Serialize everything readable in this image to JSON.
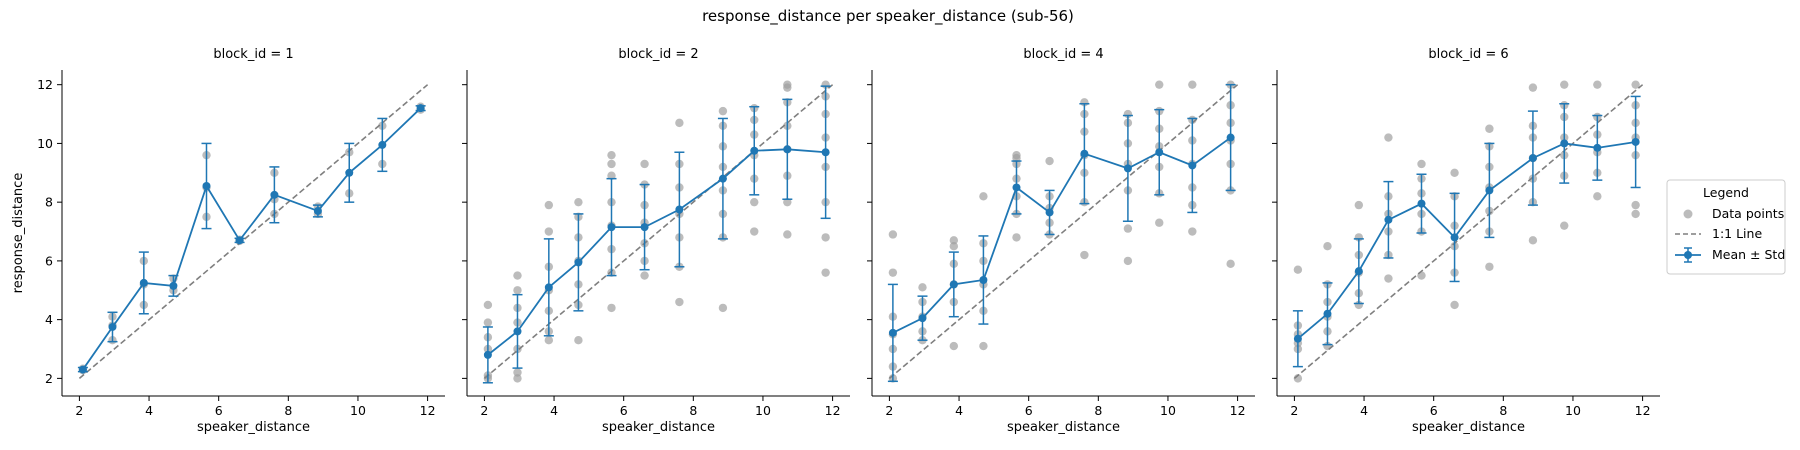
{
  "figure_title": "response_distance per speaker_distance (sub-56)",
  "legend": {
    "title": "Legend",
    "items": [
      "Data points",
      "1:1 Line",
      "Mean ± Std"
    ]
  },
  "colors": {
    "mean": "#1f77b4",
    "points": "#a0a0a0",
    "identity": "#7f7f7f"
  },
  "chart_data": [
    {
      "type": "line",
      "title": "block_id = 1",
      "xlabel": "speaker_distance",
      "ylabel": "response_distance",
      "xlim": [
        1.5,
        12.5
      ],
      "ylim": [
        1.4,
        12.5
      ],
      "xticks": [
        2,
        4,
        6,
        8,
        10,
        12
      ],
      "yticks": [
        2,
        4,
        6,
        8,
        10,
        12
      ],
      "x": [
        2.1,
        2.95,
        3.85,
        4.7,
        5.65,
        6.6,
        7.6,
        8.85,
        9.75,
        10.7,
        11.8
      ],
      "mean": [
        2.3,
        3.75,
        5.25,
        5.15,
        8.55,
        6.7,
        8.25,
        7.7,
        9.0,
        9.95,
        11.2
      ],
      "std": [
        0.07,
        0.5,
        1.05,
        0.35,
        1.45,
        0.07,
        0.95,
        0.2,
        1.0,
        0.9,
        0.08
      ],
      "points": [
        [
          2.1,
          2.28
        ],
        [
          2.1,
          2.33
        ],
        [
          2.95,
          3.3
        ],
        [
          2.95,
          4.1
        ],
        [
          2.95,
          3.8
        ],
        [
          3.85,
          4.5
        ],
        [
          3.85,
          6.0
        ],
        [
          3.85,
          5.2
        ],
        [
          4.7,
          5.0
        ],
        [
          4.7,
          5.4
        ],
        [
          5.65,
          7.5
        ],
        [
          5.65,
          9.6
        ],
        [
          5.65,
          8.5
        ],
        [
          6.6,
          6.68
        ],
        [
          6.6,
          6.72
        ],
        [
          7.6,
          7.6
        ],
        [
          7.6,
          9.0
        ],
        [
          7.6,
          8.1
        ],
        [
          8.85,
          7.6
        ],
        [
          8.85,
          7.85
        ],
        [
          9.75,
          8.3
        ],
        [
          9.75,
          9.7
        ],
        [
          10.7,
          9.3
        ],
        [
          10.7,
          10.6
        ],
        [
          11.8,
          11.15
        ],
        [
          11.8,
          11.25
        ]
      ]
    },
    {
      "type": "line",
      "title": "block_id = 2",
      "xlabel": "speaker_distance",
      "ylabel": "",
      "xlim": [
        1.5,
        12.5
      ],
      "ylim": [
        1.4,
        12.5
      ],
      "xticks": [
        2,
        4,
        6,
        8,
        10,
        12
      ],
      "yticks": [
        2,
        4,
        6,
        8,
        10,
        12
      ],
      "x": [
        2.1,
        2.95,
        3.85,
        4.7,
        5.65,
        6.6,
        7.6,
        8.85,
        9.75,
        10.7,
        11.8
      ],
      "mean": [
        2.8,
        3.6,
        5.1,
        5.95,
        7.15,
        7.15,
        7.75,
        8.8,
        9.75,
        9.8,
        9.7
      ],
      "std": [
        0.95,
        1.25,
        1.65,
        1.65,
        1.65,
        1.45,
        1.95,
        2.05,
        1.5,
        1.7,
        2.25
      ],
      "points": [
        [
          2.1,
          2.0
        ],
        [
          2.1,
          2.1
        ],
        [
          2.1,
          3.0
        ],
        [
          2.1,
          3.4
        ],
        [
          2.1,
          3.9
        ],
        [
          2.1,
          4.5
        ],
        [
          2.95,
          2.0
        ],
        [
          2.95,
          2.2
        ],
        [
          2.95,
          3.0
        ],
        [
          2.95,
          3.9
        ],
        [
          2.95,
          4.4
        ],
        [
          2.95,
          5.0
        ],
        [
          2.95,
          5.5
        ],
        [
          3.85,
          3.3
        ],
        [
          3.85,
          3.6
        ],
        [
          3.85,
          4.3
        ],
        [
          3.85,
          5.0
        ],
        [
          3.85,
          5.8
        ],
        [
          3.85,
          7.0
        ],
        [
          3.85,
          7.9
        ],
        [
          4.7,
          3.3
        ],
        [
          4.7,
          4.5
        ],
        [
          4.7,
          5.2
        ],
        [
          4.7,
          6.0
        ],
        [
          4.7,
          6.8
        ],
        [
          4.7,
          7.5
        ],
        [
          4.7,
          8.0
        ],
        [
          5.65,
          4.4
        ],
        [
          5.65,
          5.6
        ],
        [
          5.65,
          6.4
        ],
        [
          5.65,
          7.2
        ],
        [
          5.65,
          8.0
        ],
        [
          5.65,
          8.9
        ],
        [
          5.65,
          9.3
        ],
        [
          5.65,
          9.6
        ],
        [
          6.6,
          5.5
        ],
        [
          6.6,
          6.0
        ],
        [
          6.6,
          6.6
        ],
        [
          6.6,
          7.3
        ],
        [
          6.6,
          7.9
        ],
        [
          6.6,
          8.6
        ],
        [
          6.6,
          9.3
        ],
        [
          7.6,
          4.6
        ],
        [
          7.6,
          5.8
        ],
        [
          7.6,
          6.8
        ],
        [
          7.6,
          7.6
        ],
        [
          7.6,
          8.5
        ],
        [
          7.6,
          9.3
        ],
        [
          7.6,
          10.7
        ],
        [
          8.85,
          4.4
        ],
        [
          8.85,
          6.8
        ],
        [
          8.85,
          7.6
        ],
        [
          8.85,
          8.4
        ],
        [
          8.85,
          9.2
        ],
        [
          8.85,
          9.9
        ],
        [
          8.85,
          10.6
        ],
        [
          8.85,
          11.1
        ],
        [
          9.75,
          7.0
        ],
        [
          9.75,
          8.0
        ],
        [
          9.75,
          8.8
        ],
        [
          9.75,
          9.6
        ],
        [
          9.75,
          10.3
        ],
        [
          9.75,
          10.8
        ],
        [
          9.75,
          11.2
        ],
        [
          10.7,
          6.9
        ],
        [
          10.7,
          8.0
        ],
        [
          10.7,
          8.9
        ],
        [
          10.7,
          9.8
        ],
        [
          10.7,
          10.6
        ],
        [
          10.7,
          11.4
        ],
        [
          10.7,
          12.0
        ],
        [
          10.7,
          11.9
        ],
        [
          11.8,
          5.6
        ],
        [
          11.8,
          6.8
        ],
        [
          11.8,
          8.0
        ],
        [
          11.8,
          9.2
        ],
        [
          11.8,
          10.2
        ],
        [
          11.8,
          11.0
        ],
        [
          11.8,
          11.6
        ],
        [
          11.8,
          12.0
        ]
      ]
    },
    {
      "type": "line",
      "title": "block_id = 4",
      "xlabel": "speaker_distance",
      "ylabel": "",
      "xlim": [
        1.5,
        12.5
      ],
      "ylim": [
        1.4,
        12.5
      ],
      "xticks": [
        2,
        4,
        6,
        8,
        10,
        12
      ],
      "yticks": [
        2,
        4,
        6,
        8,
        10,
        12
      ],
      "x": [
        2.1,
        2.95,
        3.85,
        4.7,
        5.65,
        6.6,
        7.6,
        8.85,
        9.75,
        10.7,
        11.8
      ],
      "mean": [
        3.55,
        4.05,
        5.2,
        5.35,
        8.5,
        7.65,
        9.65,
        9.15,
        9.7,
        9.25,
        10.2
      ],
      "std": [
        1.65,
        0.75,
        1.1,
        1.5,
        0.9,
        0.75,
        1.7,
        1.8,
        1.45,
        1.6,
        1.8
      ],
      "points": [
        [
          2.1,
          2.0
        ],
        [
          2.1,
          2.4
        ],
        [
          2.1,
          3.0
        ],
        [
          2.1,
          3.5
        ],
        [
          2.1,
          4.1
        ],
        [
          2.1,
          5.6
        ],
        [
          2.1,
          6.9
        ],
        [
          2.95,
          3.3
        ],
        [
          2.95,
          3.6
        ],
        [
          2.95,
          4.1
        ],
        [
          2.95,
          4.6
        ],
        [
          2.95,
          5.1
        ],
        [
          3.85,
          3.1
        ],
        [
          3.85,
          4.6
        ],
        [
          3.85,
          5.2
        ],
        [
          3.85,
          5.9
        ],
        [
          3.85,
          6.5
        ],
        [
          3.85,
          6.7
        ],
        [
          4.7,
          3.1
        ],
        [
          4.7,
          4.3
        ],
        [
          4.7,
          5.2
        ],
        [
          4.7,
          6.0
        ],
        [
          4.7,
          6.6
        ],
        [
          4.7,
          8.2
        ],
        [
          5.65,
          6.8
        ],
        [
          5.65,
          7.6
        ],
        [
          5.65,
          8.2
        ],
        [
          5.65,
          8.8
        ],
        [
          5.65,
          9.3
        ],
        [
          5.65,
          9.5
        ],
        [
          5.65,
          9.6
        ],
        [
          6.6,
          6.9
        ],
        [
          6.6,
          7.3
        ],
        [
          6.6,
          7.8
        ],
        [
          6.6,
          8.2
        ],
        [
          6.6,
          9.4
        ],
        [
          7.6,
          6.2
        ],
        [
          7.6,
          8.0
        ],
        [
          7.6,
          9.0
        ],
        [
          7.6,
          9.6
        ],
        [
          7.6,
          10.4
        ],
        [
          7.6,
          11.0
        ],
        [
          7.6,
          11.4
        ],
        [
          8.85,
          6.0
        ],
        [
          8.85,
          7.1
        ],
        [
          8.85,
          8.4
        ],
        [
          8.85,
          9.3
        ],
        [
          8.85,
          10.0
        ],
        [
          8.85,
          10.7
        ],
        [
          8.85,
          11.0
        ],
        [
          9.75,
          7.3
        ],
        [
          9.75,
          8.3
        ],
        [
          9.75,
          9.2
        ],
        [
          9.75,
          9.9
        ],
        [
          9.75,
          10.5
        ],
        [
          9.75,
          11.1
        ],
        [
          9.75,
          12.0
        ],
        [
          10.7,
          7.0
        ],
        [
          10.7,
          7.9
        ],
        [
          10.7,
          8.5
        ],
        [
          10.7,
          9.3
        ],
        [
          10.7,
          10.1
        ],
        [
          10.7,
          10.8
        ],
        [
          10.7,
          12.0
        ],
        [
          11.8,
          5.9
        ],
        [
          11.8,
          8.4
        ],
        [
          11.8,
          9.3
        ],
        [
          11.8,
          10.1
        ],
        [
          11.8,
          10.7
        ],
        [
          11.8,
          11.3
        ],
        [
          11.8,
          12.0
        ]
      ]
    },
    {
      "type": "line",
      "title": "block_id = 6",
      "xlabel": "speaker_distance",
      "ylabel": "",
      "xlim": [
        1.5,
        12.5
      ],
      "ylim": [
        1.4,
        12.5
      ],
      "xticks": [
        2,
        4,
        6,
        8,
        10,
        12
      ],
      "yticks": [
        2,
        4,
        6,
        8,
        10,
        12
      ],
      "x": [
        2.1,
        2.95,
        3.85,
        4.7,
        5.65,
        6.6,
        7.6,
        8.85,
        9.75,
        10.7,
        11.8
      ],
      "mean": [
        3.35,
        4.2,
        5.65,
        7.4,
        7.95,
        6.8,
        8.4,
        9.5,
        10.0,
        9.85,
        10.05
      ],
      "std": [
        0.95,
        1.05,
        1.1,
        1.3,
        1.0,
        1.5,
        1.6,
        1.6,
        1.35,
        1.1,
        1.55
      ],
      "points": [
        [
          2.1,
          2.0
        ],
        [
          2.1,
          3.0
        ],
        [
          2.1,
          3.2
        ],
        [
          2.1,
          3.5
        ],
        [
          2.1,
          3.8
        ],
        [
          2.1,
          5.7
        ],
        [
          2.95,
          3.1
        ],
        [
          2.95,
          3.6
        ],
        [
          2.95,
          4.1
        ],
        [
          2.95,
          4.6
        ],
        [
          2.95,
          5.2
        ],
        [
          2.95,
          6.5
        ],
        [
          3.85,
          4.5
        ],
        [
          3.85,
          4.9
        ],
        [
          3.85,
          5.6
        ],
        [
          3.85,
          6.2
        ],
        [
          3.85,
          6.8
        ],
        [
          3.85,
          7.9
        ],
        [
          4.7,
          5.4
        ],
        [
          4.7,
          6.2
        ],
        [
          4.7,
          7.0
        ],
        [
          4.7,
          7.6
        ],
        [
          4.7,
          8.2
        ],
        [
          4.7,
          10.2
        ],
        [
          5.65,
          5.5
        ],
        [
          5.65,
          7.0
        ],
        [
          5.65,
          7.6
        ],
        [
          5.65,
          8.3
        ],
        [
          5.65,
          8.8
        ],
        [
          5.65,
          9.3
        ],
        [
          6.6,
          4.5
        ],
        [
          6.6,
          5.6
        ],
        [
          6.6,
          6.5
        ],
        [
          6.6,
          7.2
        ],
        [
          6.6,
          8.2
        ],
        [
          6.6,
          9.0
        ],
        [
          7.6,
          5.8
        ],
        [
          7.6,
          7.0
        ],
        [
          7.6,
          7.7
        ],
        [
          7.6,
          8.5
        ],
        [
          7.6,
          9.2
        ],
        [
          7.6,
          9.9
        ],
        [
          7.6,
          10.5
        ],
        [
          8.85,
          6.7
        ],
        [
          8.85,
          8.0
        ],
        [
          8.85,
          8.8
        ],
        [
          8.85,
          9.5
        ],
        [
          8.85,
          10.2
        ],
        [
          8.85,
          10.6
        ],
        [
          8.85,
          11.9
        ],
        [
          9.75,
          7.2
        ],
        [
          9.75,
          8.9
        ],
        [
          9.75,
          9.6
        ],
        [
          9.75,
          10.2
        ],
        [
          9.75,
          10.9
        ],
        [
          9.75,
          11.3
        ],
        [
          9.75,
          12.0
        ],
        [
          10.7,
          8.2
        ],
        [
          10.7,
          9.0
        ],
        [
          10.7,
          9.7
        ],
        [
          10.7,
          10.3
        ],
        [
          10.7,
          10.9
        ],
        [
          10.7,
          12.0
        ],
        [
          11.8,
          7.6
        ],
        [
          11.8,
          7.9
        ],
        [
          11.8,
          9.6
        ],
        [
          11.8,
          10.2
        ],
        [
          11.8,
          10.7
        ],
        [
          11.8,
          11.3
        ],
        [
          11.8,
          12.0
        ]
      ]
    }
  ]
}
